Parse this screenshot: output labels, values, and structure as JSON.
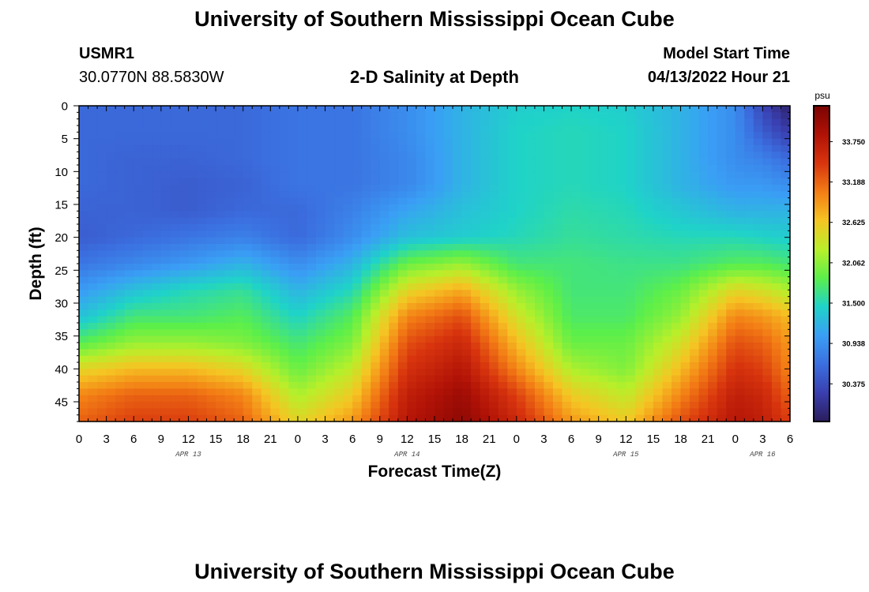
{
  "header": {
    "title": "University of Southern Mississippi Ocean Cube",
    "station_name": "USMR1",
    "station_coords": "30.0770N  88.5830W",
    "chart_title": "2-D Salinity at Depth",
    "model_start_label": "Model Start Time",
    "model_start_value": "04/13/2022 Hour 21"
  },
  "footer": {
    "title": "University of Southern Mississippi Ocean Cube"
  },
  "colors": {
    "colormap": [
      "#2b1d5c",
      "#3a3fb0",
      "#3b6fe0",
      "#3a9ff5",
      "#1fd3c8",
      "#5cef4a",
      "#b8ef2a",
      "#f5c523",
      "#f37d15",
      "#d8350e",
      "#b01206",
      "#7a0403"
    ]
  },
  "chart_data": {
    "type": "heatmap",
    "title": "2-D Salinity at Depth",
    "xlabel": "Forecast Time(Z)",
    "ylabel": "Depth (ft)",
    "x_hours": [
      0,
      3,
      6,
      9,
      12,
      15,
      18,
      21,
      24,
      27,
      30,
      33,
      36,
      39,
      42,
      45,
      48,
      51,
      54,
      57,
      60,
      63,
      66,
      69,
      72,
      75,
      78
    ],
    "x_tick_labels": [
      "0",
      "3",
      "6",
      "9",
      "12",
      "15",
      "18",
      "21",
      "0",
      "3",
      "6",
      "9",
      "12",
      "15",
      "18",
      "21",
      "0",
      "3",
      "6",
      "9",
      "12",
      "15",
      "18",
      "21",
      "0",
      "3",
      "6"
    ],
    "date_labels": [
      {
        "label": "APR 13",
        "hour": 12
      },
      {
        "label": "APR 14",
        "hour": 36
      },
      {
        "label": "APR 15",
        "hour": 60
      },
      {
        "label": "APR 16",
        "hour": 75
      }
    ],
    "y_ticks": [
      0,
      5,
      10,
      15,
      20,
      25,
      30,
      35,
      40,
      45
    ],
    "xlim": [
      0,
      78
    ],
    "ylim": [
      0,
      48
    ],
    "y_inverted": true,
    "colorbar": {
      "unit": "psu",
      "ticks": [
        "30.375",
        "30.938",
        "31.500",
        "32.062",
        "32.625",
        "33.188",
        "33.750"
      ],
      "tick_values": [
        30.375,
        30.938,
        31.5,
        32.062,
        32.625,
        33.188,
        33.75
      ],
      "range": [
        29.85,
        34.25
      ]
    },
    "depths": [
      0,
      4,
      8,
      12,
      16,
      20,
      24,
      28,
      32,
      36,
      40,
      44,
      48
    ],
    "hours": [
      0,
      6,
      12,
      18,
      24,
      30,
      36,
      42,
      48,
      54,
      60,
      66,
      72,
      75,
      78
    ],
    "values": [
      [
        30.6,
        30.6,
        30.6,
        30.6,
        30.7,
        30.7,
        30.9,
        31.2,
        31.4,
        31.45,
        31.4,
        31.2,
        30.9,
        30.3,
        29.9
      ],
      [
        30.6,
        30.6,
        30.6,
        30.6,
        30.7,
        30.7,
        30.9,
        31.2,
        31.45,
        31.5,
        31.45,
        31.2,
        30.9,
        30.5,
        30.2
      ],
      [
        30.6,
        30.55,
        30.55,
        30.6,
        30.7,
        30.7,
        30.85,
        31.2,
        31.45,
        31.5,
        31.45,
        31.2,
        30.9,
        30.8,
        30.6
      ],
      [
        30.6,
        30.55,
        30.5,
        30.55,
        30.7,
        30.7,
        30.85,
        31.2,
        31.45,
        31.5,
        31.45,
        31.2,
        31.0,
        31.0,
        30.9
      ],
      [
        30.55,
        30.55,
        30.5,
        30.6,
        30.6,
        30.8,
        31.1,
        31.3,
        31.45,
        31.55,
        31.5,
        31.35,
        31.2,
        31.2,
        31.2
      ],
      [
        30.5,
        30.6,
        30.7,
        30.8,
        30.6,
        30.9,
        31.3,
        31.4,
        31.5,
        31.6,
        31.55,
        31.5,
        31.5,
        31.45,
        31.4
      ],
      [
        30.7,
        30.85,
        31.0,
        31.2,
        30.9,
        31.2,
        31.9,
        32.1,
        31.7,
        31.7,
        31.65,
        31.65,
        31.8,
        31.8,
        31.7
      ],
      [
        31.0,
        31.3,
        31.5,
        31.6,
        31.2,
        31.5,
        32.5,
        32.8,
        32.1,
        31.7,
        31.7,
        31.9,
        32.5,
        32.4,
        32.2
      ],
      [
        31.3,
        31.7,
        31.7,
        31.8,
        31.45,
        31.8,
        33.0,
        33.3,
        32.4,
        31.75,
        31.75,
        32.1,
        33.0,
        32.9,
        32.7
      ],
      [
        31.8,
        32.1,
        32.1,
        32.0,
        31.7,
        32.0,
        33.3,
        33.6,
        32.7,
        31.9,
        31.9,
        32.4,
        33.3,
        33.2,
        32.9
      ],
      [
        32.5,
        32.7,
        32.7,
        32.5,
        31.9,
        32.3,
        33.5,
        33.8,
        33.0,
        32.2,
        32.0,
        32.7,
        33.5,
        33.4,
        33.0
      ],
      [
        33.0,
        33.2,
        33.2,
        33.0,
        32.2,
        32.6,
        33.7,
        34.0,
        33.4,
        32.6,
        32.3,
        33.0,
        33.7,
        33.6,
        33.2
      ],
      [
        33.2,
        33.4,
        33.4,
        33.2,
        32.5,
        32.9,
        33.8,
        34.1,
        33.6,
        32.9,
        32.6,
        33.3,
        33.8,
        33.7,
        33.4
      ]
    ]
  }
}
